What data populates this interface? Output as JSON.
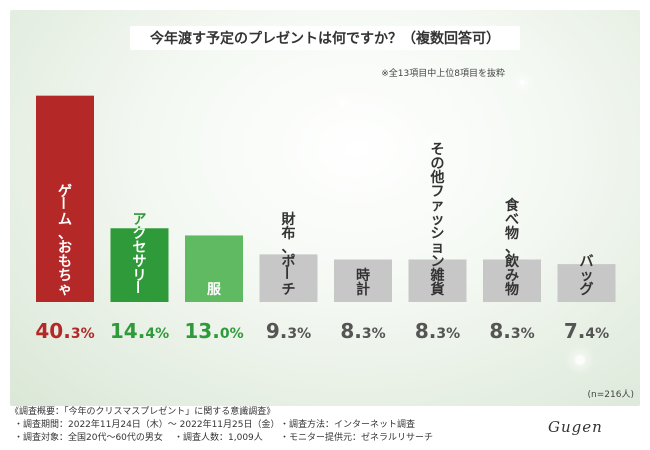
{
  "title": "今年渡す予定のプレゼントは何ですか？（複数回答可）",
  "note": "※全13項目中上位8項目を抜粋",
  "sample_size": "(n=216人)",
  "colors": {
    "top": "#b42828",
    "second": "#2f9a3a",
    "third": "#5fba62",
    "other": "#c7c7c7",
    "pct_red": "#b42828",
    "pct_green": "#2f9a3a",
    "pct_gray": "#555555"
  },
  "chart_data": {
    "type": "bar",
    "title": "今年渡す予定のプレゼントは何ですか？（複数回答可）",
    "categories": [
      "ゲーム、おもちゃ",
      "アクセサリー",
      "服",
      "財布、ポーチ",
      "時計",
      "その他ファッション雑貨",
      "食べ物、飲み物",
      "バッグ"
    ],
    "values": [
      40.3,
      14.4,
      13.0,
      9.3,
      8.3,
      8.3,
      8.3,
      7.4
    ],
    "unit": "%",
    "ylim": [
      0,
      45
    ],
    "grid": false,
    "legend": "none"
  },
  "footer": {
    "heading": "《調査概要：「今年のクリスマスプレゼント」に関する意識調査》",
    "period": "・調査期間：2022年11月24日（木）〜 2022年11月25日（金）",
    "method": "・調査方法：インターネット調査",
    "target": "・調査対象：全国20代〜60代の男女",
    "count": "・調査人数：1,009人",
    "provider": "・モニター提供元：ゼネラルリサーチ"
  },
  "signature": "Gugen"
}
